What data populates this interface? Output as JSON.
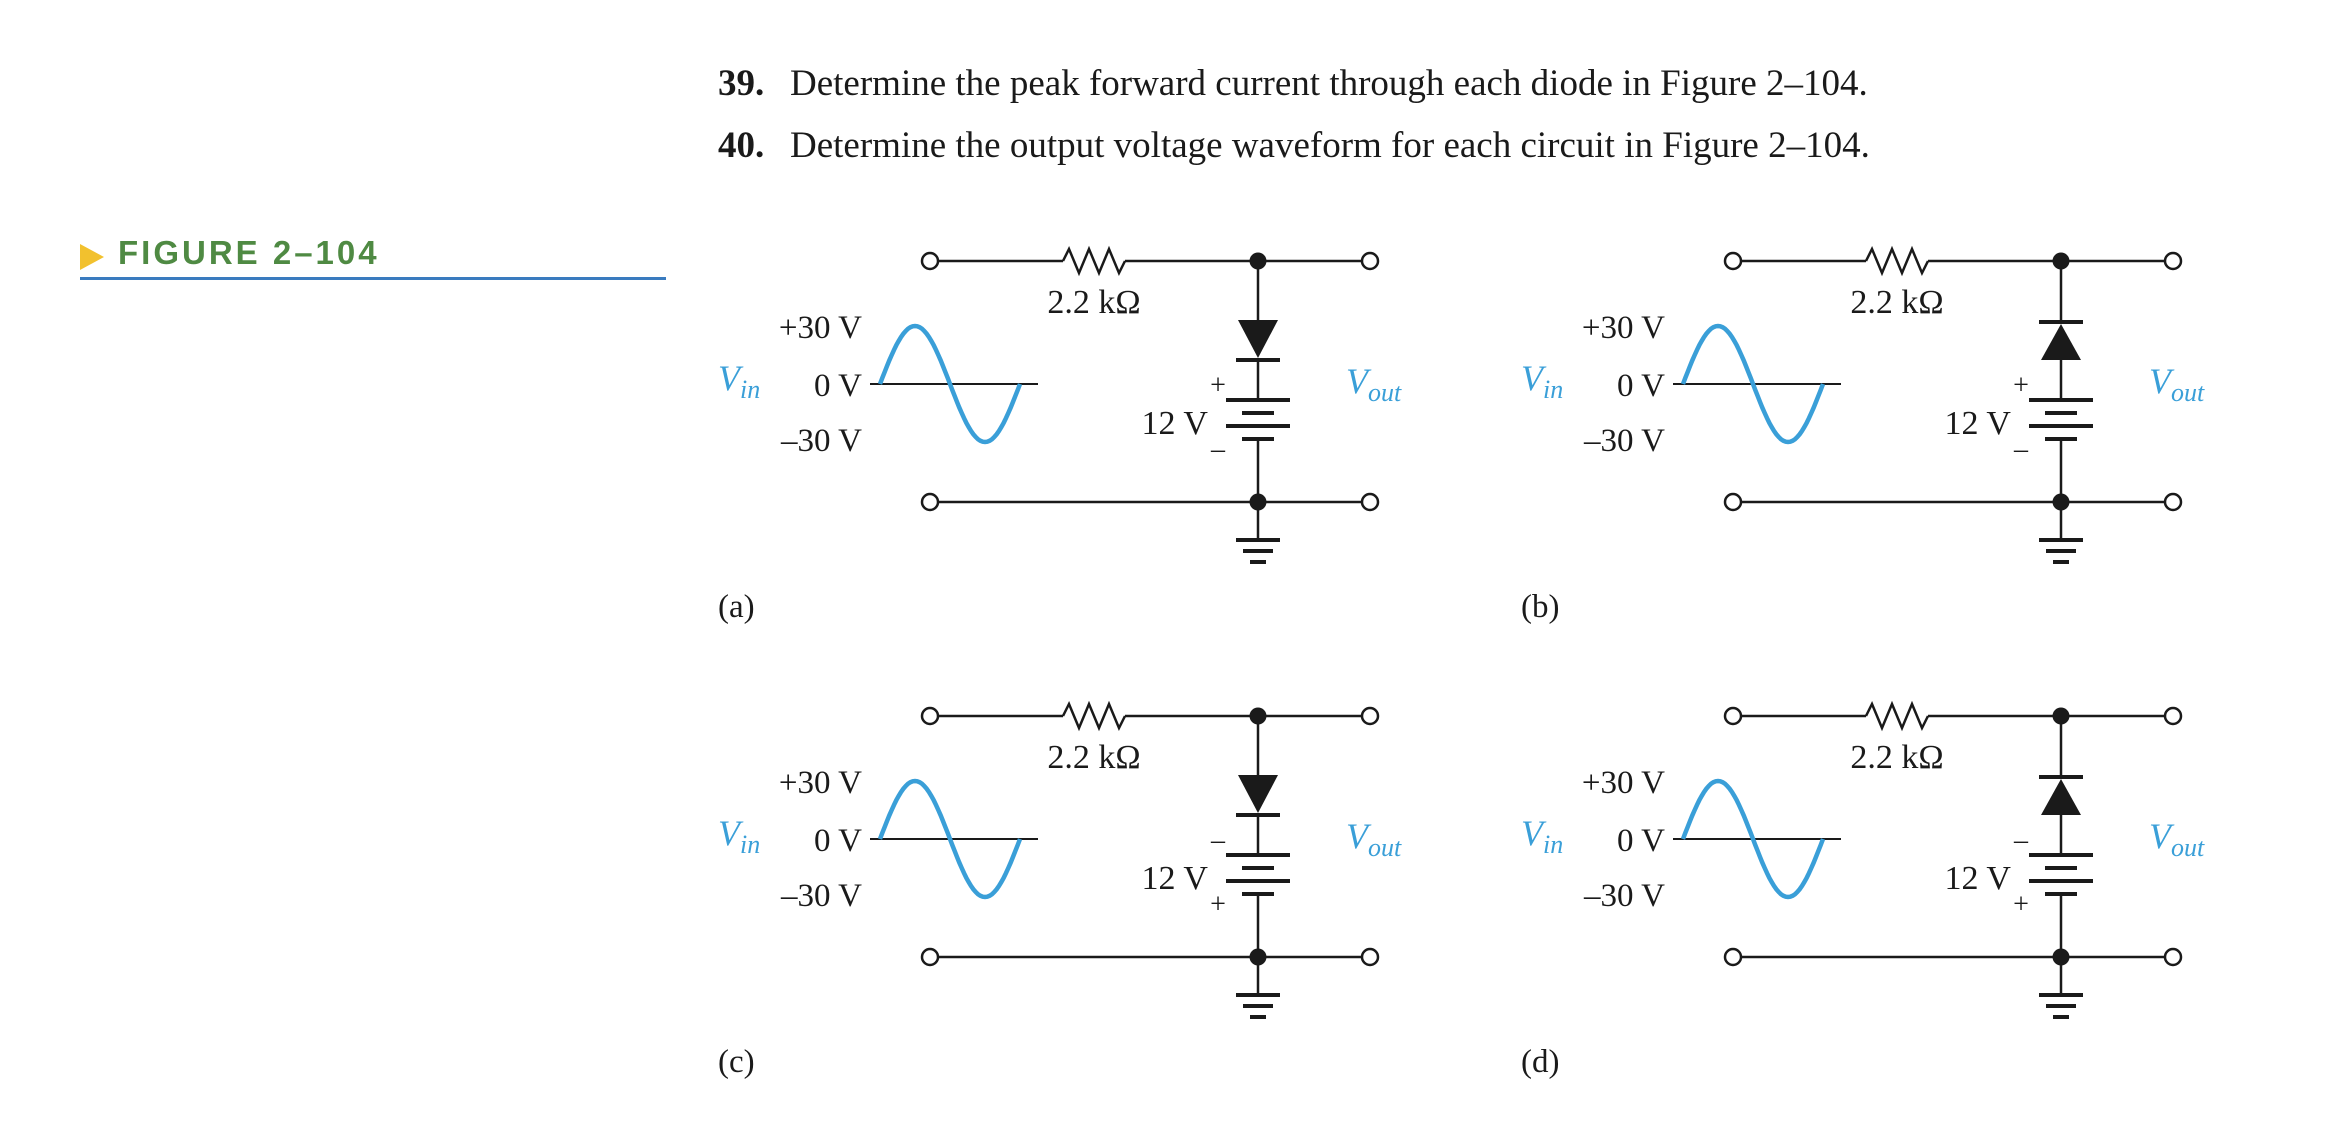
{
  "problems": [
    {
      "number": "39.",
      "text": "Determine the peak forward current through each diode in Figure 2–104."
    },
    {
      "number": "40.",
      "text": "Determine the output voltage waveform for each circuit in Figure 2–104."
    }
  ],
  "figure": {
    "caption": "FIGURE 2–104",
    "caption_color": "#4f8a43",
    "marker_color": "#f2c12e",
    "rule_color": "#3a7bbf",
    "signal_color": "#3a9fd8",
    "circuits": [
      {
        "label": "(a)",
        "resistor": "2.2 kΩ",
        "battery": "12 V",
        "top_sign": "+",
        "bottom_sign": "–",
        "diode": "down",
        "vin": "V",
        "vin_sub": "in",
        "vout": "V",
        "vout_sub": "out",
        "peak_pos": "+30 V",
        "zero": "0 V",
        "peak_neg": "–30 V"
      },
      {
        "label": "(b)",
        "resistor": "2.2 kΩ",
        "battery": "12 V",
        "top_sign": "+",
        "bottom_sign": "–",
        "diode": "up",
        "vin": "V",
        "vin_sub": "in",
        "vout": "V",
        "vout_sub": "out",
        "peak_pos": "+30 V",
        "zero": "0 V",
        "peak_neg": "–30 V"
      },
      {
        "label": "(c)",
        "resistor": "2.2 kΩ",
        "battery": "12 V",
        "top_sign": "–",
        "bottom_sign": "+",
        "diode": "down",
        "vin": "V",
        "vin_sub": "in",
        "vout": "V",
        "vout_sub": "out",
        "peak_pos": "+30 V",
        "zero": "0 V",
        "peak_neg": "–30 V"
      },
      {
        "label": "(d)",
        "resistor": "2.2 kΩ",
        "battery": "12 V",
        "top_sign": "–",
        "bottom_sign": "+",
        "diode": "up",
        "vin": "V",
        "vin_sub": "in",
        "vout": "V",
        "vout_sub": "out",
        "peak_pos": "+30 V",
        "zero": "0 V",
        "peak_neg": "–30 V"
      }
    ]
  }
}
